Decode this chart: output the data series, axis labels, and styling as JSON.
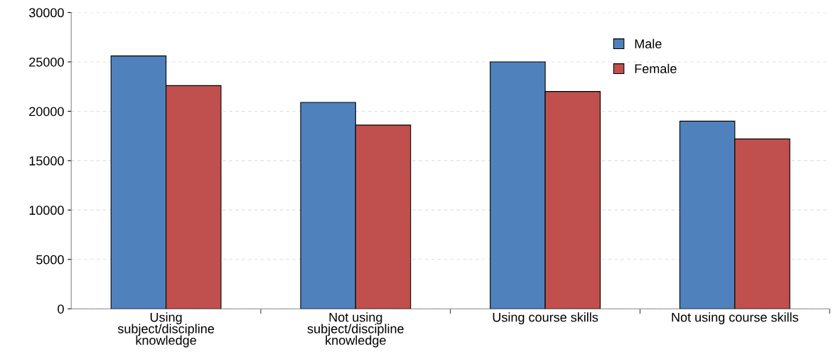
{
  "chart_data": {
    "type": "bar",
    "categories": [
      "Using subject/discipline knowledge",
      "Not using subject/discipline knowledge",
      "Using course skills",
      "Not using course skills"
    ],
    "series": [
      {
        "name": "Male",
        "color": "#4f81bd",
        "values": [
          25600,
          20900,
          25000,
          19000
        ]
      },
      {
        "name": "Female",
        "color": "#c0504d",
        "values": [
          22600,
          18600,
          22000,
          17200
        ]
      }
    ],
    "ylim": [
      0,
      30000
    ],
    "yticks": [
      0,
      5000,
      10000,
      15000,
      20000,
      25000,
      30000
    ],
    "grid": "y",
    "legend": "top right"
  }
}
